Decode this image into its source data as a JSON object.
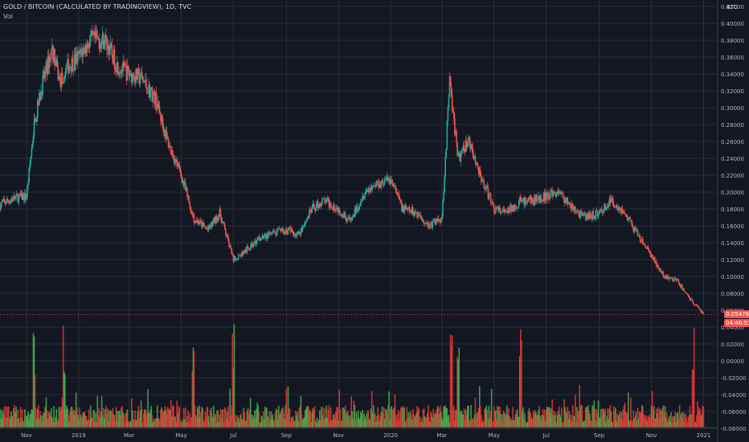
{
  "header": {
    "symbol": "GOLD / BITCOIN (CALCULATED BY TRADINGVIEW), 1D, TVC",
    "volume_label": "Vol"
  },
  "price_axis": {
    "currency_label": "BTC",
    "ticks": [
      "0.42000",
      "0.40000",
      "0.38000",
      "0.36000",
      "0.34000",
      "0.32000",
      "0.30000",
      "0.28000",
      "0.26000",
      "0.24000",
      "0.22000",
      "0.20000",
      "0.18000",
      "0.16000",
      "0.14000",
      "0.12000",
      "0.10000",
      "0.08000",
      "0.06000",
      "0.04000",
      "0.02000",
      "0.00000",
      "-0.02000",
      "-0.04000",
      "-0.06000",
      "-0.08000"
    ]
  },
  "last_price": {
    "value": "0.05476",
    "countdown": "04:46:51",
    "color": "#ef5350"
  },
  "time_axis": {
    "labels": [
      "Nov",
      "2019",
      "Mar",
      "May",
      "Jul",
      "Sep",
      "Nov",
      "2020",
      "Mar",
      "May",
      "Jul",
      "Sep",
      "Nov",
      "2021"
    ]
  },
  "colors": {
    "up": "#26a69a",
    "down": "#ef5350",
    "vol_up": "#4caf50",
    "vol_down": "#e53935",
    "grid": "#2a2e39",
    "background": "#131722"
  },
  "chart_data": {
    "type": "candlestick",
    "title": "GOLD / BITCOIN (CALCULATED BY TRADINGVIEW), 1D, TVC",
    "ylabel": "BTC",
    "ylim": [
      -0.08,
      0.42
    ],
    "grid": true,
    "x": [
      "2018-10-01",
      "2018-10-15",
      "2018-11-01",
      "2018-11-10",
      "2018-11-20",
      "2018-12-01",
      "2018-12-10",
      "2018-12-20",
      "2019-01-01",
      "2019-01-15",
      "2019-02-01",
      "2019-02-15",
      "2019-03-01",
      "2019-03-15",
      "2019-04-01",
      "2019-04-15",
      "2019-05-01",
      "2019-05-15",
      "2019-06-01",
      "2019-06-15",
      "2019-07-01",
      "2019-07-15",
      "2019-08-01",
      "2019-08-15",
      "2019-09-01",
      "2019-09-15",
      "2019-10-01",
      "2019-10-15",
      "2019-11-01",
      "2019-11-15",
      "2019-12-01",
      "2019-12-15",
      "2020-01-01",
      "2020-01-15",
      "2020-02-01",
      "2020-02-15",
      "2020-03-01",
      "2020-03-10",
      "2020-03-20",
      "2020-04-01",
      "2020-04-15",
      "2020-05-01",
      "2020-05-15",
      "2020-06-01",
      "2020-06-15",
      "2020-07-01",
      "2020-07-15",
      "2020-08-01",
      "2020-08-15",
      "2020-09-01",
      "2020-09-15",
      "2020-10-01",
      "2020-10-15",
      "2020-11-01",
      "2020-11-15",
      "2020-12-01",
      "2020-12-15",
      "2021-01-01"
    ],
    "close": [
      0.185,
      0.192,
      0.195,
      0.28,
      0.33,
      0.37,
      0.33,
      0.35,
      0.36,
      0.38,
      0.38,
      0.35,
      0.34,
      0.335,
      0.31,
      0.26,
      0.22,
      0.17,
      0.155,
      0.175,
      0.12,
      0.13,
      0.145,
      0.15,
      0.155,
      0.15,
      0.18,
      0.19,
      0.18,
      0.165,
      0.2,
      0.21,
      0.215,
      0.18,
      0.175,
      0.16,
      0.17,
      0.33,
      0.24,
      0.26,
      0.22,
      0.18,
      0.175,
      0.19,
      0.19,
      0.195,
      0.2,
      0.18,
      0.17,
      0.175,
      0.19,
      0.175,
      0.15,
      0.125,
      0.1,
      0.095,
      0.075,
      0.055
    ]
  },
  "volume_data": {
    "note_type": "histogram",
    "spikes_x": [
      "2018-11-10",
      "2018-12-15",
      "2019-05-15",
      "2019-07-01",
      "2020-03-12",
      "2020-03-20",
      "2020-06-01",
      "2020-12-20"
    ]
  }
}
